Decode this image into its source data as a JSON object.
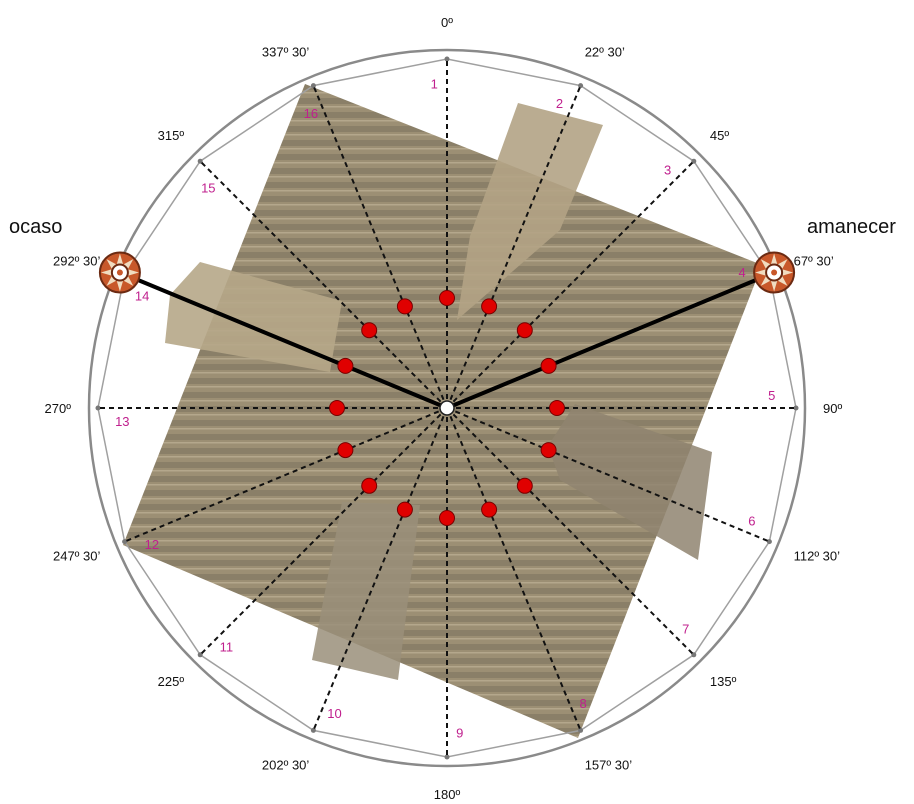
{
  "diagram": {
    "side_labels": {
      "left": "ocaso",
      "right": "amanecer"
    },
    "directions": [
      {
        "num": "1",
        "degree_label": "0º"
      },
      {
        "num": "2",
        "degree_label": "22º 30’"
      },
      {
        "num": "3",
        "degree_label": "45º"
      },
      {
        "num": "4",
        "degree_label": "67º 30’"
      },
      {
        "num": "5",
        "degree_label": "90º"
      },
      {
        "num": "6",
        "degree_label": "112º 30’"
      },
      {
        "num": "7",
        "degree_label": "135º"
      },
      {
        "num": "8",
        "degree_label": "157º 30’"
      },
      {
        "num": "9",
        "degree_label": "180º"
      },
      {
        "num": "10",
        "degree_label": "202º 30’"
      },
      {
        "num": "11",
        "degree_label": "225º"
      },
      {
        "num": "12",
        "degree_label": "247º 30’"
      },
      {
        "num": "13",
        "degree_label": "270º"
      },
      {
        "num": "14",
        "degree_label": "292º 30’"
      },
      {
        "num": "15",
        "degree_label": "315º"
      },
      {
        "num": "16",
        "degree_label": "337º 30’"
      }
    ],
    "highlighted": [
      {
        "num": "4",
        "icon": "sun-emblem-icon"
      },
      {
        "num": "14",
        "icon": "sun-emblem-icon"
      }
    ],
    "colors": {
      "marker": "#e00000",
      "number_labels": "#c0208e",
      "circle": "#8a8a8a",
      "texture": "#a6987d"
    }
  }
}
